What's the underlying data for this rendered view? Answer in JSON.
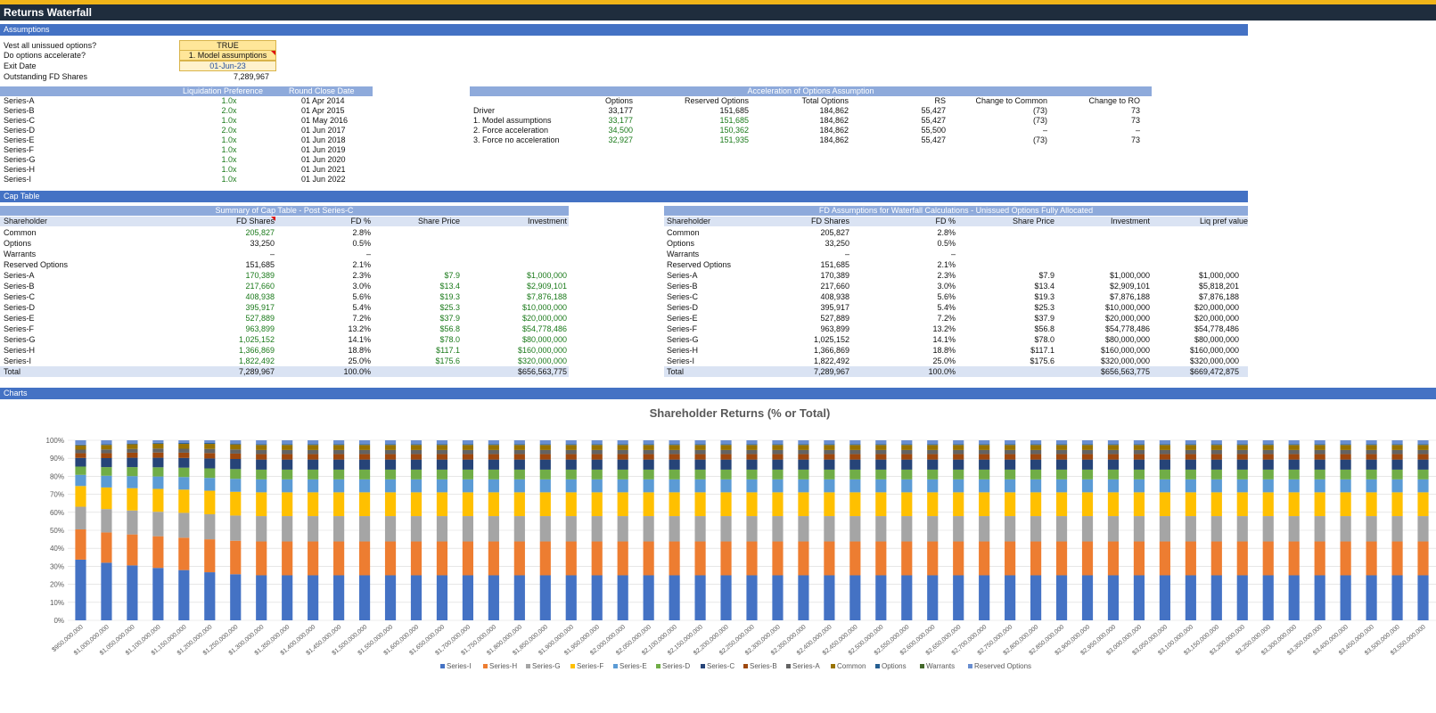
{
  "title": "Returns Waterfall",
  "sections": {
    "assumptions": "Assumptions",
    "cap_table": "Cap Table",
    "charts": "Charts"
  },
  "assumptions": {
    "rows": [
      {
        "label": "Vest all unissued options?",
        "value": "TRUE"
      },
      {
        "label": "Do options accelerate?",
        "value": "1. Model assumptions"
      },
      {
        "label": "Exit Date",
        "value": "01-Jun-23"
      },
      {
        "label": "Outstanding FD Shares",
        "value": "7,289,967"
      }
    ]
  },
  "liq_table": {
    "headers": [
      "Liquidation Preference",
      "Round Close Date"
    ],
    "rows": [
      {
        "name": "Series-A",
        "pref": "1.0x",
        "date": "01 Apr 2014"
      },
      {
        "name": "Series-B",
        "pref": "2.0x",
        "date": "01 Apr 2015"
      },
      {
        "name": "Series-C",
        "pref": "1.0x",
        "date": "01 May 2016"
      },
      {
        "name": "Series-D",
        "pref": "2.0x",
        "date": "01 Jun 2017"
      },
      {
        "name": "Series-E",
        "pref": "1.0x",
        "date": "01 Jun 2018"
      },
      {
        "name": "Series-F",
        "pref": "1.0x",
        "date": "01 Jun 2019"
      },
      {
        "name": "Series-G",
        "pref": "1.0x",
        "date": "01 Jun 2020"
      },
      {
        "name": "Series-H",
        "pref": "1.0x",
        "date": "01 Jun 2021"
      },
      {
        "name": "Series-I",
        "pref": "1.0x",
        "date": "01 Jun 2022"
      }
    ]
  },
  "accel_table": {
    "title": "Acceleration of Options Assumption",
    "headers": [
      "Options",
      "Reserved Options",
      "Total Options",
      "RS",
      "Change to Common",
      "Change to RO"
    ],
    "rows": [
      {
        "label": "Driver",
        "cells": [
          "33,177",
          "151,685",
          "184,862",
          "55,427",
          "(73)",
          "73"
        ]
      },
      {
        "label": "1. Model assumptions",
        "cells": [
          "33,177",
          "151,685",
          "184,862",
          "55,427",
          "(73)",
          "73"
        ]
      },
      {
        "label": "2. Force acceleration",
        "cells": [
          "34,500",
          "150,362",
          "184,862",
          "55,500",
          "–",
          "–"
        ]
      },
      {
        "label": "3. Force no acceleration",
        "cells": [
          "32,927",
          "151,935",
          "184,862",
          "55,427",
          "(73)",
          "73"
        ]
      }
    ]
  },
  "summary_table": {
    "title": "Summary of Cap Table - Post Series-C",
    "headers": [
      "Shareholder",
      "FD Shares",
      "FD %",
      "Share Price",
      "Investment"
    ],
    "rows": [
      [
        "Common",
        "205,827",
        "2.8%",
        "",
        ""
      ],
      [
        "Options",
        "33,250",
        "0.5%",
        "",
        ""
      ],
      [
        "Warrants",
        "–",
        "–",
        "",
        ""
      ],
      [
        "Reserved Options",
        "151,685",
        "2.1%",
        "",
        ""
      ],
      [
        "Series-A",
        "170,389",
        "2.3%",
        "$7.9",
        "$1,000,000"
      ],
      [
        "Series-B",
        "217,660",
        "3.0%",
        "$13.4",
        "$2,909,101"
      ],
      [
        "Series-C",
        "408,938",
        "5.6%",
        "$19.3",
        "$7,876,188"
      ],
      [
        "Series-D",
        "395,917",
        "5.4%",
        "$25.3",
        "$10,000,000"
      ],
      [
        "Series-E",
        "527,889",
        "7.2%",
        "$37.9",
        "$20,000,000"
      ],
      [
        "Series-F",
        "963,899",
        "13.2%",
        "$56.8",
        "$54,778,486"
      ],
      [
        "Series-G",
        "1,025,152",
        "14.1%",
        "$78.0",
        "$80,000,000"
      ],
      [
        "Series-H",
        "1,366,869",
        "18.8%",
        "$117.1",
        "$160,000,000"
      ],
      [
        "Series-I",
        "1,822,492",
        "25.0%",
        "$175.6",
        "$320,000,000"
      ]
    ],
    "total": [
      "Total",
      "7,289,967",
      "100.0%",
      "",
      "$656,563,775"
    ]
  },
  "fd_table": {
    "title": "FD Assumptions for Waterfall Calculations - Unissued Options Fully Allocated",
    "headers": [
      "Shareholder",
      "FD Shares",
      "FD %",
      "Share Price",
      "Investment",
      "Liq pref value"
    ],
    "rows": [
      [
        "Common",
        "205,827",
        "2.8%",
        "",
        "",
        ""
      ],
      [
        "Options",
        "33,250",
        "0.5%",
        "",
        "",
        ""
      ],
      [
        "Warrants",
        "–",
        "–",
        "",
        "",
        ""
      ],
      [
        "Reserved Options",
        "151,685",
        "2.1%",
        "",
        "",
        ""
      ],
      [
        "Series-A",
        "170,389",
        "2.3%",
        "$7.9",
        "$1,000,000",
        "$1,000,000"
      ],
      [
        "Series-B",
        "217,660",
        "3.0%",
        "$13.4",
        "$2,909,101",
        "$5,818,201"
      ],
      [
        "Series-C",
        "408,938",
        "5.6%",
        "$19.3",
        "$7,876,188",
        "$7,876,188"
      ],
      [
        "Series-D",
        "395,917",
        "5.4%",
        "$25.3",
        "$10,000,000",
        "$20,000,000"
      ],
      [
        "Series-E",
        "527,889",
        "7.2%",
        "$37.9",
        "$20,000,000",
        "$20,000,000"
      ],
      [
        "Series-F",
        "963,899",
        "13.2%",
        "$56.8",
        "$54,778,486",
        "$54,778,486"
      ],
      [
        "Series-G",
        "1,025,152",
        "14.1%",
        "$78.0",
        "$80,000,000",
        "$80,000,000"
      ],
      [
        "Series-H",
        "1,366,869",
        "18.8%",
        "$117.1",
        "$160,000,000",
        "$160,000,000"
      ],
      [
        "Series-I",
        "1,822,492",
        "25.0%",
        "$175.6",
        "$320,000,000",
        "$320,000,000"
      ]
    ],
    "total": [
      "Total",
      "7,289,967",
      "100.0%",
      "",
      "$656,563,775",
      "$669,472,875"
    ]
  },
  "chart_data": {
    "type": "bar",
    "stacked": "percent",
    "title": "Shareholder Returns (% or Total)",
    "xlabel": "",
    "ylabel": "",
    "ylim": [
      0,
      100
    ],
    "yticks": [
      "0%",
      "10%",
      "20%",
      "30%",
      "40%",
      "50%",
      "60%",
      "70%",
      "80%",
      "90%",
      "100%"
    ],
    "legend": "bottom",
    "grid": true,
    "categories": [
      "$950,000,000",
      "$1,000,000,000",
      "$1,050,000,000",
      "$1,100,000,000",
      "$1,150,000,000",
      "$1,200,000,000",
      "$1,250,000,000",
      "$1,300,000,000",
      "$1,350,000,000",
      "$1,400,000,000",
      "$1,450,000,000",
      "$1,500,000,000",
      "$1,550,000,000",
      "$1,600,000,000",
      "$1,650,000,000",
      "$1,700,000,000",
      "$1,750,000,000",
      "$1,800,000,000",
      "$1,850,000,000",
      "$1,900,000,000",
      "$1,950,000,000",
      "$2,000,000,000",
      "$2,050,000,000",
      "$2,100,000,000",
      "$2,150,000,000",
      "$2,200,000,000",
      "$2,250,000,000",
      "$2,300,000,000",
      "$2,350,000,000",
      "$2,400,000,000",
      "$2,450,000,000",
      "$2,500,000,000",
      "$2,550,000,000",
      "$2,600,000,000",
      "$2,650,000,000",
      "$2,700,000,000",
      "$2,750,000,000",
      "$2,800,000,000",
      "$2,850,000,000",
      "$2,900,000,000",
      "$2,950,000,000",
      "$3,000,000,000",
      "$3,050,000,000",
      "$3,100,000,000",
      "$3,150,000,000",
      "$3,200,000,000",
      "$3,250,000,000",
      "$3,300,000,000",
      "$3,350,000,000",
      "$3,400,000,000",
      "$3,450,000,000",
      "$3,500,000,000",
      "$3,550,000,000"
    ],
    "series": [
      {
        "name": "Series-I",
        "color": "#4472c4",
        "values": [
          33.7,
          32.0,
          30.5,
          29.1,
          27.9,
          26.7,
          25.6,
          25.0,
          25.0,
          25.0,
          25.0,
          25.0,
          25.0,
          25.0,
          25.0,
          25.0,
          25.0,
          25.0,
          25.0,
          25.0,
          25.0,
          25.0,
          25.0,
          25.0,
          25.0,
          25.0,
          25.0,
          25.0,
          25.0,
          25.0,
          25.0,
          25.0,
          25.0,
          25.0,
          25.0,
          25.0,
          25.0,
          25.0,
          25.0,
          25.0,
          25.0,
          25.0,
          25.0,
          25.0,
          25.0,
          25.0,
          25.0,
          25.0,
          25.0,
          25.0,
          25.0,
          25.0,
          25.0
        ]
      },
      {
        "name": "Series-H",
        "color": "#ed7d31",
        "values": [
          16.8,
          16.8,
          17.2,
          17.6,
          18.0,
          18.3,
          18.6,
          18.8,
          18.8,
          18.8,
          18.8,
          18.8,
          18.8,
          18.8,
          18.8,
          18.8,
          18.8,
          18.8,
          18.8,
          18.8,
          18.8,
          18.8,
          18.8,
          18.8,
          18.8,
          18.8,
          18.8,
          18.8,
          18.8,
          18.8,
          18.8,
          18.8,
          18.8,
          18.8,
          18.8,
          18.8,
          18.8,
          18.8,
          18.8,
          18.8,
          18.8,
          18.8,
          18.8,
          18.8,
          18.8,
          18.8,
          18.8,
          18.8,
          18.8,
          18.8,
          18.8,
          18.8,
          18.8
        ]
      },
      {
        "name": "Series-G",
        "color": "#a5a5a5",
        "values": [
          12.6,
          13.0,
          13.3,
          13.6,
          13.8,
          13.9,
          14.0,
          14.1,
          14.1,
          14.1,
          14.1,
          14.1,
          14.1,
          14.1,
          14.1,
          14.1,
          14.1,
          14.1,
          14.1,
          14.1,
          14.1,
          14.1,
          14.1,
          14.1,
          14.1,
          14.1,
          14.1,
          14.1,
          14.1,
          14.1,
          14.1,
          14.1,
          14.1,
          14.1,
          14.1,
          14.1,
          14.1,
          14.1,
          14.1,
          14.1,
          14.1,
          14.1,
          14.1,
          14.1,
          14.1,
          14.1,
          14.1,
          14.1,
          14.1,
          14.1,
          14.1,
          14.1,
          14.1
        ]
      },
      {
        "name": "Series-F",
        "color": "#ffc000",
        "values": [
          11.5,
          12.0,
          12.4,
          12.7,
          12.9,
          13.1,
          13.2,
          13.2,
          13.2,
          13.2,
          13.2,
          13.2,
          13.2,
          13.2,
          13.2,
          13.2,
          13.2,
          13.2,
          13.2,
          13.2,
          13.2,
          13.2,
          13.2,
          13.2,
          13.2,
          13.2,
          13.2,
          13.2,
          13.2,
          13.2,
          13.2,
          13.2,
          13.2,
          13.2,
          13.2,
          13.2,
          13.2,
          13.2,
          13.2,
          13.2,
          13.2,
          13.2,
          13.2,
          13.2,
          13.2,
          13.2,
          13.2,
          13.2,
          13.2,
          13.2,
          13.2,
          13.2,
          13.2
        ]
      },
      {
        "name": "Series-E",
        "color": "#5b9bd5",
        "values": [
          6.2,
          6.5,
          6.7,
          6.9,
          7.0,
          7.1,
          7.2,
          7.2,
          7.2,
          7.2,
          7.2,
          7.2,
          7.2,
          7.2,
          7.2,
          7.2,
          7.2,
          7.2,
          7.2,
          7.2,
          7.2,
          7.2,
          7.2,
          7.2,
          7.2,
          7.2,
          7.2,
          7.2,
          7.2,
          7.2,
          7.2,
          7.2,
          7.2,
          7.2,
          7.2,
          7.2,
          7.2,
          7.2,
          7.2,
          7.2,
          7.2,
          7.2,
          7.2,
          7.2,
          7.2,
          7.2,
          7.2,
          7.2,
          7.2,
          7.2,
          7.2,
          7.2,
          7.2
        ]
      },
      {
        "name": "Series-D",
        "color": "#70ad47",
        "values": [
          4.6,
          4.8,
          5.0,
          5.1,
          5.2,
          5.3,
          5.4,
          5.4,
          5.4,
          5.4,
          5.4,
          5.4,
          5.4,
          5.4,
          5.4,
          5.4,
          5.4,
          5.4,
          5.4,
          5.4,
          5.4,
          5.4,
          5.4,
          5.4,
          5.4,
          5.4,
          5.4,
          5.4,
          5.4,
          5.4,
          5.4,
          5.4,
          5.4,
          5.4,
          5.4,
          5.4,
          5.4,
          5.4,
          5.4,
          5.4,
          5.4,
          5.4,
          5.4,
          5.4,
          5.4,
          5.4,
          5.4,
          5.4,
          5.4,
          5.4,
          5.4,
          5.4,
          5.4
        ]
      },
      {
        "name": "Series-C",
        "color": "#264478",
        "values": [
          4.8,
          5.0,
          5.2,
          5.3,
          5.4,
          5.5,
          5.6,
          5.6,
          5.6,
          5.6,
          5.6,
          5.6,
          5.6,
          5.6,
          5.6,
          5.6,
          5.6,
          5.6,
          5.6,
          5.6,
          5.6,
          5.6,
          5.6,
          5.6,
          5.6,
          5.6,
          5.6,
          5.6,
          5.6,
          5.6,
          5.6,
          5.6,
          5.6,
          5.6,
          5.6,
          5.6,
          5.6,
          5.6,
          5.6,
          5.6,
          5.6,
          5.6,
          5.6,
          5.6,
          5.6,
          5.6,
          5.6,
          5.6,
          5.6,
          5.6,
          5.6,
          5.6,
          5.6
        ]
      },
      {
        "name": "Series-B",
        "color": "#9e480e",
        "values": [
          2.6,
          2.7,
          2.8,
          2.9,
          2.9,
          3.0,
          3.0,
          3.0,
          3.0,
          3.0,
          3.0,
          3.0,
          3.0,
          3.0,
          3.0,
          3.0,
          3.0,
          3.0,
          3.0,
          3.0,
          3.0,
          3.0,
          3.0,
          3.0,
          3.0,
          3.0,
          3.0,
          3.0,
          3.0,
          3.0,
          3.0,
          3.0,
          3.0,
          3.0,
          3.0,
          3.0,
          3.0,
          3.0,
          3.0,
          3.0,
          3.0,
          3.0,
          3.0,
          3.0,
          3.0,
          3.0,
          3.0,
          3.0,
          3.0,
          3.0,
          3.0,
          3.0,
          3.0
        ]
      },
      {
        "name": "Series-A",
        "color": "#636363",
        "values": [
          2.0,
          2.1,
          2.1,
          2.2,
          2.2,
          2.3,
          2.3,
          2.3,
          2.3,
          2.3,
          2.3,
          2.3,
          2.3,
          2.3,
          2.3,
          2.3,
          2.3,
          2.3,
          2.3,
          2.3,
          2.3,
          2.3,
          2.3,
          2.3,
          2.3,
          2.3,
          2.3,
          2.3,
          2.3,
          2.3,
          2.3,
          2.3,
          2.3,
          2.3,
          2.3,
          2.3,
          2.3,
          2.3,
          2.3,
          2.3,
          2.3,
          2.3,
          2.3,
          2.3,
          2.3,
          2.3,
          2.3,
          2.3,
          2.3,
          2.3,
          2.3,
          2.3,
          2.3
        ]
      },
      {
        "name": "Common",
        "color": "#997300",
        "values": [
          2.4,
          2.5,
          2.6,
          2.7,
          2.7,
          2.8,
          2.8,
          2.8,
          2.8,
          2.8,
          2.8,
          2.8,
          2.8,
          2.8,
          2.8,
          2.8,
          2.8,
          2.8,
          2.8,
          2.8,
          2.8,
          2.8,
          2.8,
          2.8,
          2.8,
          2.8,
          2.8,
          2.8,
          2.8,
          2.8,
          2.8,
          2.8,
          2.8,
          2.8,
          2.8,
          2.8,
          2.8,
          2.8,
          2.8,
          2.8,
          2.8,
          2.8,
          2.8,
          2.8,
          2.8,
          2.8,
          2.8,
          2.8,
          2.8,
          2.8,
          2.8,
          2.8,
          2.8
        ]
      },
      {
        "name": "Options",
        "color": "#255e91",
        "values": [
          0.4,
          0.4,
          0.4,
          0.5,
          0.5,
          0.5,
          0.5,
          0.5,
          0.5,
          0.5,
          0.5,
          0.5,
          0.5,
          0.5,
          0.5,
          0.5,
          0.5,
          0.5,
          0.5,
          0.5,
          0.5,
          0.5,
          0.5,
          0.5,
          0.5,
          0.5,
          0.5,
          0.5,
          0.5,
          0.5,
          0.5,
          0.5,
          0.5,
          0.5,
          0.5,
          0.5,
          0.5,
          0.5,
          0.5,
          0.5,
          0.5,
          0.5,
          0.5,
          0.5,
          0.5,
          0.5,
          0.5,
          0.5,
          0.5,
          0.5,
          0.5,
          0.5,
          0.5
        ]
      },
      {
        "name": "Warrants",
        "color": "#43682b",
        "values": [
          0,
          0,
          0,
          0,
          0,
          0,
          0,
          0,
          0,
          0,
          0,
          0,
          0,
          0,
          0,
          0,
          0,
          0,
          0,
          0,
          0,
          0,
          0,
          0,
          0,
          0,
          0,
          0,
          0,
          0,
          0,
          0,
          0,
          0,
          0,
          0,
          0,
          0,
          0,
          0,
          0,
          0,
          0,
          0,
          0,
          0,
          0,
          0,
          0,
          0,
          0,
          0,
          0
        ]
      },
      {
        "name": "Reserved Options",
        "color": "#698ed0",
        "values": [
          2.4,
          2.2,
          1.8,
          1.4,
          1.5,
          1.5,
          1.8,
          2.1,
          2.1,
          2.1,
          2.1,
          2.1,
          2.1,
          2.1,
          2.1,
          2.1,
          2.1,
          2.1,
          2.1,
          2.1,
          2.1,
          2.1,
          2.1,
          2.1,
          2.1,
          2.1,
          2.1,
          2.1,
          2.1,
          2.1,
          2.1,
          2.1,
          2.1,
          2.1,
          2.1,
          2.1,
          2.1,
          2.1,
          2.1,
          2.1,
          2.1,
          2.1,
          2.1,
          2.1,
          2.1,
          2.1,
          2.1,
          2.1,
          2.1,
          2.1,
          2.1,
          2.1,
          2.1
        ]
      }
    ]
  }
}
